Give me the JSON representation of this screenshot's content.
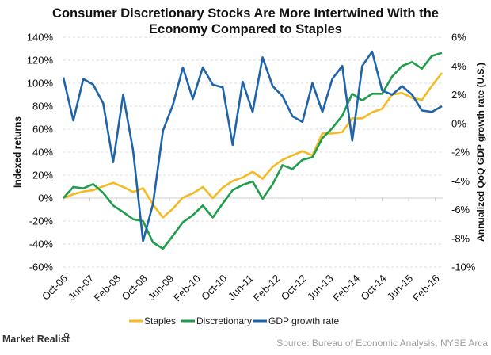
{
  "chart_data": {
    "type": "line",
    "title": "Consumer Discretionary Stocks Are More Intertwined With the Economy Compared to Staples",
    "title_lines": [
      "Consumer Discretionary Stocks Are More Intertwined With the",
      "Economy Compared to Staples"
    ],
    "ylabel": "Indexed returns",
    "y2label": "Annualized QoQ GDP growth rate (U.S.)",
    "ylim": [
      -60,
      140
    ],
    "y2lim": [
      -10,
      6
    ],
    "yticks": [
      "-60%",
      "-40%",
      "-20%",
      "0%",
      "20%",
      "40%",
      "60%",
      "80%",
      "100%",
      "120%",
      "140%"
    ],
    "y2ticks": [
      "-10%",
      "-8%",
      "-6%",
      "-4%",
      "-2%",
      "0%",
      "2%",
      "4%",
      "6%"
    ],
    "xticks": [
      "Oct-06",
      "Jun-07",
      "Feb-08",
      "Oct-08",
      "Jun-09",
      "Feb-10",
      "Oct-10",
      "Jun-11",
      "Feb-12",
      "Oct-12",
      "Jun-13",
      "Feb-14",
      "Oct-14",
      "Jun-15",
      "Feb-16"
    ],
    "grid": true,
    "legend": "bottom",
    "x": [
      "Oct-06",
      "Jan-07",
      "Apr-07",
      "Jul-07",
      "Oct-07",
      "Jan-08",
      "Apr-08",
      "Jul-08",
      "Oct-08",
      "Jan-09",
      "Apr-09",
      "Jul-09",
      "Oct-09",
      "Jan-10",
      "Apr-10",
      "Jul-10",
      "Oct-10",
      "Jan-11",
      "Apr-11",
      "Jul-11",
      "Oct-11",
      "Jan-12",
      "Apr-12",
      "Jul-12",
      "Oct-12",
      "Jan-13",
      "Apr-13",
      "Jul-13",
      "Oct-13",
      "Jan-14",
      "Apr-14",
      "Jul-14",
      "Oct-14",
      "Jan-15",
      "Apr-15",
      "Jul-15",
      "Oct-15",
      "Jan-16",
      "Apr-16"
    ],
    "series": [
      {
        "name": "Staples",
        "axis": "left",
        "color": "#F5B921",
        "values": [
          0,
          3.4,
          5.7,
          6.9,
          10.3,
          13.3,
          9.7,
          5.3,
          8.7,
          -5.7,
          -16.8,
          -9.2,
          0.5,
          4.1,
          9.7,
          0,
          9.2,
          15,
          17.9,
          23,
          16.8,
          27.1,
          33.3,
          37.2,
          40.9,
          37.2,
          56.3,
          56.3,
          57.5,
          69.4,
          69.4,
          74.7,
          77.7,
          90.1,
          91.5,
          87.4,
          85.5,
          97.7,
          109
        ]
      },
      {
        "name": "Discretionary",
        "axis": "left",
        "color": "#1E9E4A",
        "values": [
          0,
          9.7,
          8.5,
          12.2,
          4.6,
          -6.4,
          -12.2,
          -18.4,
          -20,
          -38.6,
          -44.1,
          -32.6,
          -21.1,
          -14.9,
          -6.4,
          -16.8,
          -4.6,
          6.9,
          11.5,
          14.5,
          -0.5,
          11.9,
          28.7,
          25.3,
          33.3,
          35.6,
          52.2,
          60.9,
          71.7,
          90.8,
          85,
          90.8,
          90.8,
          105.7,
          115,
          118.4,
          112.6,
          123.7,
          126.4
        ]
      },
      {
        "name": "GDP growth rate",
        "axis": "right",
        "color": "#1F63A8",
        "values": [
          3.2,
          0.2,
          3.1,
          2.7,
          1.4,
          -2.7,
          2.0,
          -1.9,
          -8.2,
          -5.6,
          -0.5,
          1.3,
          3.9,
          1.7,
          3.9,
          2.7,
          2.5,
          -1.5,
          2.9,
          0.8,
          4.6,
          2.6,
          1.9,
          0.5,
          0.1,
          2.8,
          0.8,
          3.1,
          4.0,
          -1.2,
          4.0,
          5.0,
          2.3,
          2.0,
          2.6,
          2.0,
          0.9,
          0.8,
          1.2
        ]
      }
    ]
  },
  "branding": {
    "logo": "Market Realist"
  },
  "source": "Source: Bureau of Economic Analysis, NYSE Arca"
}
